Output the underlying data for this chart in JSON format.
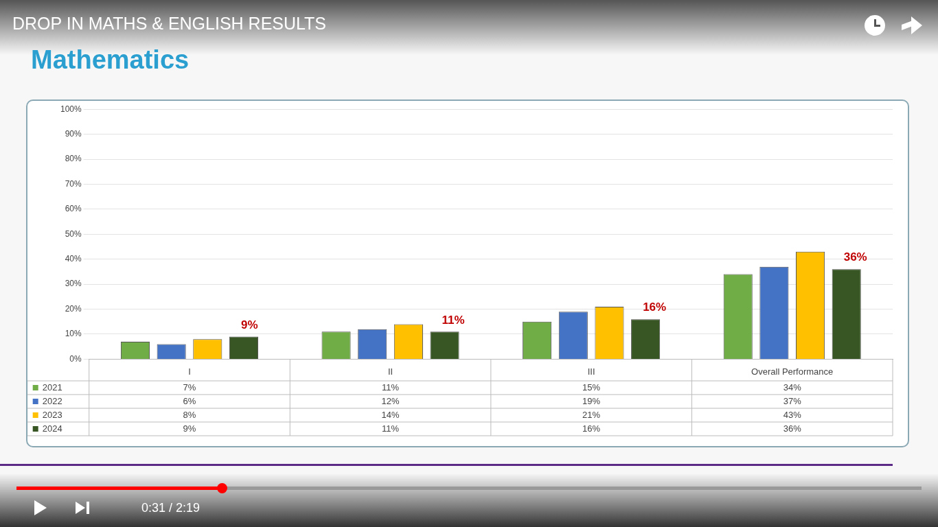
{
  "chart_data": {
    "type": "bar",
    "title": "DROP IN MATHS & ENGLISH RESULTS",
    "subtitle": "Mathematics",
    "categories": [
      "I",
      "II",
      "III",
      "Overall Performance"
    ],
    "series": [
      {
        "name": "2021",
        "color": "#70ad47",
        "values": [
          7,
          11,
          15,
          34
        ],
        "value_labels": [
          "7%",
          "11%",
          "15%",
          "34%"
        ]
      },
      {
        "name": "2022",
        "color": "#4472c4",
        "values": [
          6,
          12,
          19,
          37
        ],
        "value_labels": [
          "6%",
          "12%",
          "19%",
          "37%"
        ]
      },
      {
        "name": "2023",
        "color": "#ffc000",
        "values": [
          8,
          14,
          21,
          43
        ],
        "value_labels": [
          "8%",
          "14%",
          "21%",
          "43%"
        ]
      },
      {
        "name": "2024",
        "color": "#375623",
        "values": [
          9,
          11,
          16,
          36
        ],
        "value_labels": [
          "9%",
          "11%",
          "16%",
          "36%"
        ]
      }
    ],
    "ylim": [
      0,
      100
    ],
    "yticks": [
      {
        "value": 0,
        "label": "0%"
      },
      {
        "value": 10,
        "label": "10%"
      },
      {
        "value": 20,
        "label": "20%"
      },
      {
        "value": 30,
        "label": "30%"
      },
      {
        "value": 40,
        "label": "40%"
      },
      {
        "value": 50,
        "label": "50%"
      },
      {
        "value": 60,
        "label": "60%"
      },
      {
        "value": 70,
        "label": "70%"
      },
      {
        "value": 80,
        "label": "80%"
      },
      {
        "value": 90,
        "label": "90%"
      },
      {
        "value": 100,
        "label": "100%"
      }
    ],
    "grid": "y",
    "legend": "bottom",
    "annotations": [
      "0:31 / 2:19"
    ]
  }
}
